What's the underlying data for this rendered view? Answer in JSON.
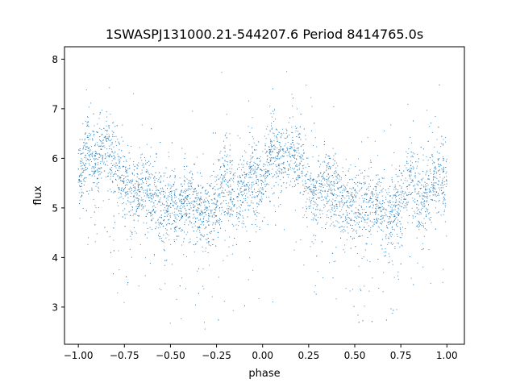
{
  "chart_data": {
    "type": "scatter",
    "title": "1SWASPJ131000.21-544207.6 Period 8414765.0s",
    "xlabel": "phase",
    "ylabel": "flux",
    "xlim": [
      -1.075,
      1.095
    ],
    "ylim": [
      2.25,
      8.25
    ],
    "xticks": [
      -1.0,
      -0.75,
      -0.5,
      -0.25,
      0.0,
      0.25,
      0.5,
      0.75,
      1.0
    ],
    "xtick_labels": [
      "−1.00",
      "−0.75",
      "−0.50",
      "−0.25",
      "0.00",
      "0.25",
      "0.50",
      "0.75",
      "1.00"
    ],
    "yticks": [
      3,
      4,
      5,
      6,
      7,
      8
    ],
    "ytick_labels": [
      "3",
      "4",
      "5",
      "6",
      "7",
      "8"
    ],
    "marker_color": "#1f77b4",
    "grid": false,
    "series": [
      {
        "phase_flux_profile": {
          "x": [
            -1.0,
            -0.95,
            -0.9,
            -0.85,
            -0.8,
            -0.75,
            -0.7,
            -0.65,
            -0.6,
            -0.55,
            -0.5,
            -0.45,
            -0.4,
            -0.35,
            -0.3,
            -0.25,
            -0.2,
            -0.15,
            -0.1,
            -0.05,
            0.0,
            0.05,
            0.1,
            0.15,
            0.2,
            0.25,
            0.3,
            0.35,
            0.4,
            0.45,
            0.5,
            0.55,
            0.6,
            0.65,
            0.7,
            0.75,
            0.8,
            0.85,
            0.9,
            0.95,
            1.0
          ],
          "y": [
            5.5,
            6.2,
            5.8,
            6.2,
            5.9,
            5.4,
            5.3,
            5.5,
            5.2,
            5.0,
            5.0,
            5.0,
            5.1,
            4.9,
            4.8,
            5.0,
            5.7,
            5.0,
            5.4,
            5.6,
            5.5,
            6.2,
            5.8,
            6.2,
            5.9,
            5.4,
            5.3,
            5.5,
            5.2,
            5.0,
            5.0,
            5.0,
            5.1,
            4.9,
            4.8,
            5.0,
            5.7,
            5.0,
            5.4,
            5.6,
            5.5
          ]
        }
      }
    ]
  }
}
